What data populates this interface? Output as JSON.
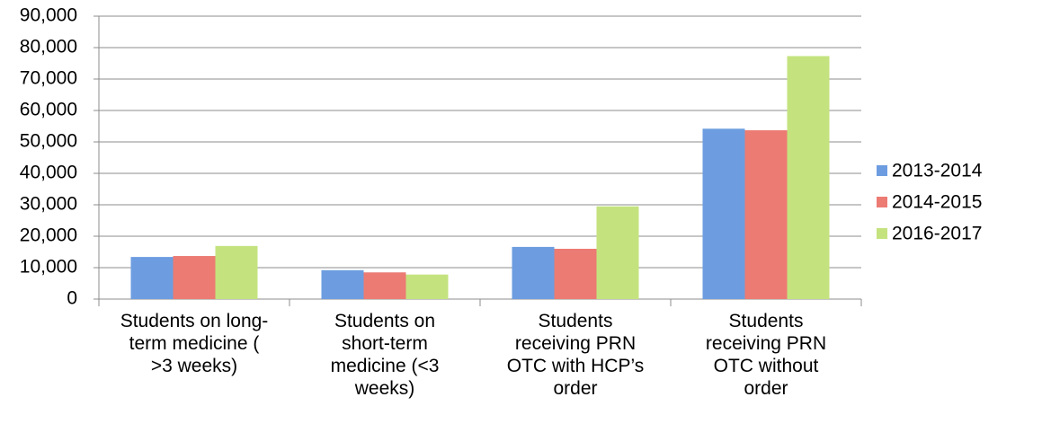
{
  "chart_data": {
    "type": "bar",
    "categories": [
      "Students on long-term medicine ( >3 weeks)",
      "Students on short-term medicine (<3 weeks)",
      "Students receiving PRN OTC with HCP’s order",
      "Students receiving PRN OTC without order"
    ],
    "series": [
      {
        "name": "2013-2014",
        "color": "#6d9de0",
        "values": [
          13400,
          9200,
          16600,
          54200
        ]
      },
      {
        "name": "2014-2015",
        "color": "#ec7b73",
        "values": [
          13700,
          8500,
          16000,
          53700
        ]
      },
      {
        "name": "2016-2017",
        "color": "#c4e37f",
        "values": [
          16900,
          7800,
          29500,
          77300
        ]
      }
    ],
    "ylim": [
      0,
      90000
    ],
    "yticks": [
      0,
      {
        "value": 10000,
        "label": "10,000"
      },
      {
        "value": 20000,
        "label": "20,000"
      },
      {
        "value": 30000,
        "label": "30,000"
      },
      {
        "value": 40000,
        "label": "40,000"
      },
      {
        "value": 50000,
        "label": "50,000"
      },
      {
        "value": 60000,
        "label": "60,000"
      },
      {
        "value": 70000,
        "label": "70,000"
      },
      {
        "value": 80000,
        "label": "80,000"
      },
      {
        "value": 90000,
        "label": "90,000"
      }
    ],
    "grid": true,
    "legend": "right"
  }
}
